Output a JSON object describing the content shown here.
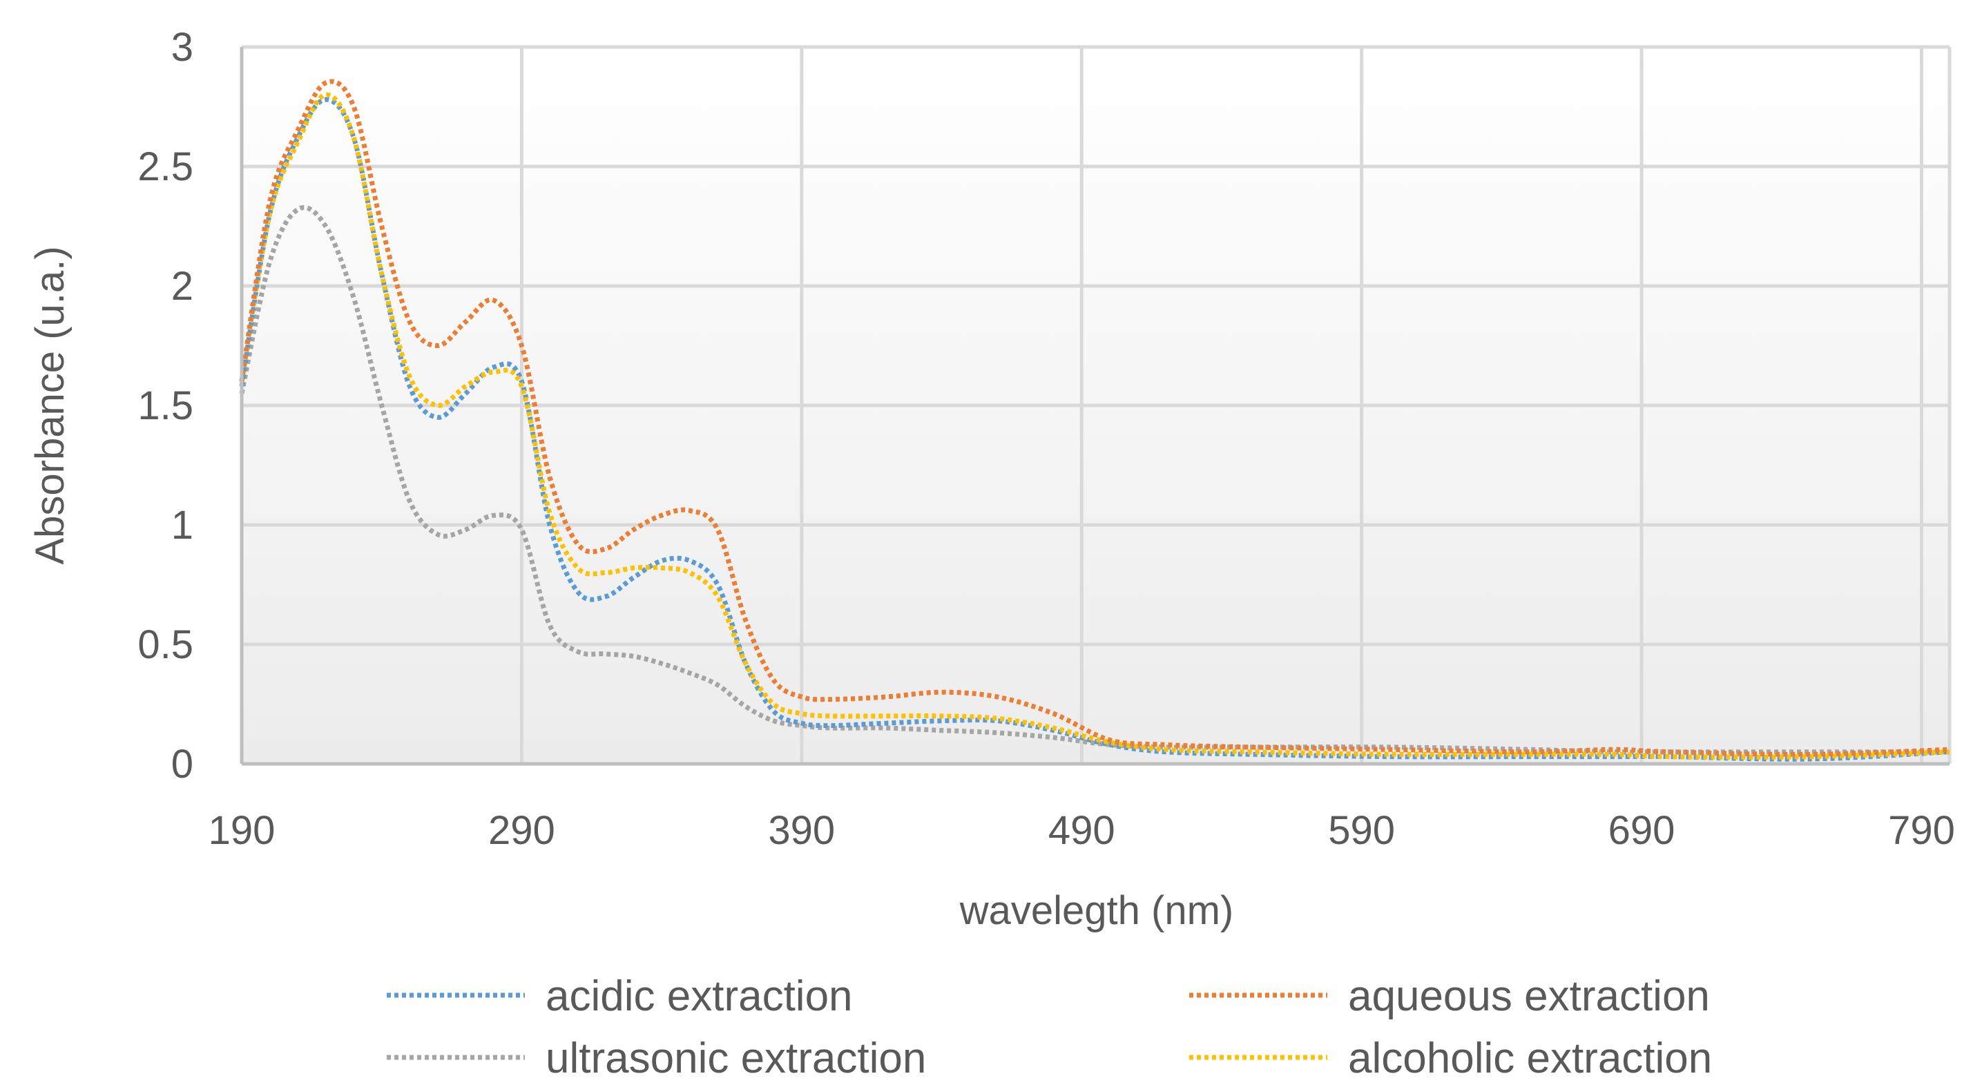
{
  "chart_data": {
    "type": "line",
    "title": "",
    "xlabel": "wavelegth (nm)",
    "ylabel": "Absorbance (u.a.)",
    "xlim": [
      190,
      800
    ],
    "ylim": [
      0,
      3
    ],
    "x_ticks": [
      190,
      290,
      390,
      490,
      590,
      690,
      790
    ],
    "y_ticks": [
      0,
      0.5,
      1,
      1.5,
      2,
      2.5,
      3
    ],
    "y_tick_labels": [
      "0",
      "0.5",
      "1",
      "1.5",
      "2",
      "2.5",
      "3"
    ],
    "grid": true,
    "legend_position": "bottom",
    "line_style": "dotted",
    "x": [
      190,
      200,
      210,
      220,
      230,
      240,
      250,
      260,
      270,
      280,
      290,
      300,
      310,
      320,
      330,
      340,
      350,
      360,
      370,
      380,
      390,
      400,
      420,
      440,
      460,
      480,
      500,
      520,
      550,
      600,
      650,
      680,
      700,
      750,
      800
    ],
    "series": [
      {
        "name": "acidic extraction",
        "color": "#5B9BD5",
        "values": [
          1.58,
          2.3,
          2.62,
          2.78,
          2.62,
          2.05,
          1.58,
          1.45,
          1.55,
          1.66,
          1.6,
          1.0,
          0.72,
          0.7,
          0.78,
          0.85,
          0.85,
          0.75,
          0.42,
          0.22,
          0.17,
          0.16,
          0.17,
          0.18,
          0.18,
          0.14,
          0.08,
          0.05,
          0.04,
          0.03,
          0.03,
          0.03,
          0.03,
          0.02,
          0.05
        ]
      },
      {
        "name": "aqueous extraction",
        "color": "#ED7D31",
        "values": [
          1.6,
          2.35,
          2.65,
          2.85,
          2.75,
          2.25,
          1.85,
          1.75,
          1.85,
          1.94,
          1.75,
          1.2,
          0.92,
          0.9,
          0.98,
          1.04,
          1.06,
          0.98,
          0.6,
          0.35,
          0.28,
          0.27,
          0.28,
          0.3,
          0.28,
          0.21,
          0.1,
          0.08,
          0.07,
          0.06,
          0.05,
          0.06,
          0.05,
          0.04,
          0.06
        ]
      },
      {
        "name": "ultrasonic extraction",
        "color": "#A5A5A5",
        "values": [
          1.55,
          2.1,
          2.32,
          2.25,
          1.95,
          1.5,
          1.1,
          0.96,
          0.98,
          1.04,
          0.98,
          0.58,
          0.47,
          0.46,
          0.45,
          0.42,
          0.38,
          0.33,
          0.24,
          0.18,
          0.16,
          0.15,
          0.15,
          0.14,
          0.13,
          0.11,
          0.08,
          0.07,
          0.07,
          0.07,
          0.06,
          0.05,
          0.05,
          0.05,
          0.05
        ]
      },
      {
        "name": "alcoholic extraction",
        "color": "#FFC000",
        "values": [
          1.6,
          2.3,
          2.6,
          2.8,
          2.62,
          2.05,
          1.62,
          1.5,
          1.58,
          1.64,
          1.58,
          1.05,
          0.82,
          0.8,
          0.82,
          0.82,
          0.8,
          0.7,
          0.42,
          0.25,
          0.21,
          0.2,
          0.2,
          0.2,
          0.19,
          0.15,
          0.09,
          0.06,
          0.05,
          0.04,
          0.04,
          0.04,
          0.03,
          0.03,
          0.05
        ]
      }
    ]
  }
}
